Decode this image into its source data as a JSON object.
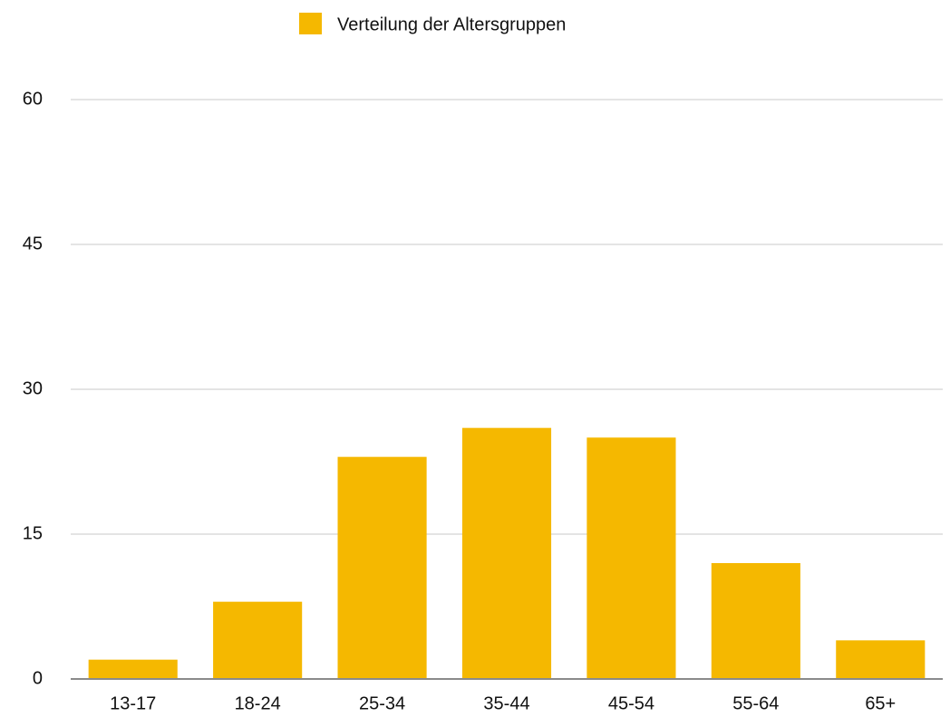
{
  "chart_data": {
    "type": "bar",
    "legend": "Verteilung der Altersgruppen",
    "categories": [
      "13-17",
      "18-24",
      "25-34",
      "35-44",
      "45-54",
      "55-64",
      "65+"
    ],
    "values": [
      2,
      8,
      23,
      26,
      25,
      12,
      4
    ],
    "color": "#f5b800",
    "ylim": [
      0,
      60
    ],
    "yticks": [
      0,
      15,
      30,
      45,
      60
    ],
    "grid": true
  }
}
